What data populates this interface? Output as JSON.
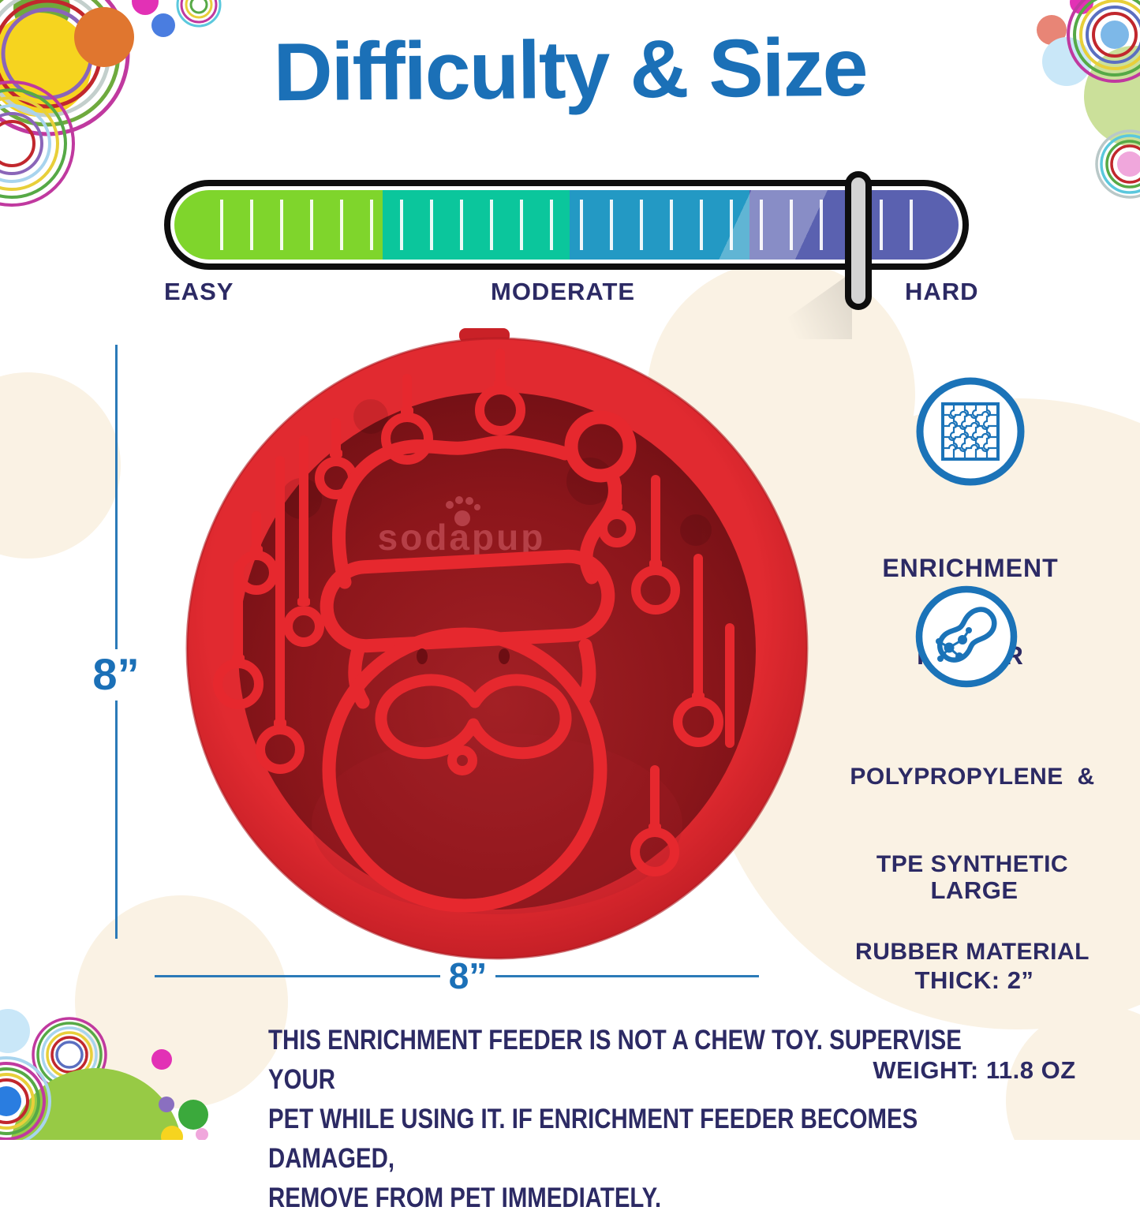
{
  "title": "Difficulty & Size",
  "difficulty_meter": {
    "easy_label": "EASY",
    "moderate_label": "MODERATE",
    "hard_label": "HARD",
    "slider_position_pct": 86.3,
    "segments": [
      {
        "name": "easy-green",
        "color": "#7fd52c",
        "width_pct": 26.6
      },
      {
        "name": "moderate-teal",
        "color": "#0bc69c",
        "width_pct": 23.8
      },
      {
        "name": "moderate-blue",
        "color": "#2399c4",
        "width_pct": 22.9
      },
      {
        "name": "hard-purple",
        "color": "#5a61b0",
        "width_pct": 26.7
      }
    ]
  },
  "feeder": {
    "embossed_logo": "sodapup",
    "height_label": "8”",
    "width_label": "8”"
  },
  "features": [
    {
      "icon": "puzzle-icon",
      "lines": [
        "ENRICHMENT",
        "FEEDER"
      ]
    },
    {
      "icon": "peanut-molecule-icon",
      "lines": [
        "POLYPROPYLENE  &",
        "TPE SYNTHETIC",
        "RUBBER MATERIAL"
      ]
    }
  ],
  "specs": {
    "size": "LARGE",
    "thickness": "THICK: 2”",
    "weight": "WEIGHT: 11.8 OZ"
  },
  "warning_lines": [
    "THIS ENRICHMENT FEEDER IS NOT A CHEW TOY. SUPERVISE YOUR",
    "PET WHILE USING IT. IF ENRICHMENT FEEDER BECOMES DAMAGED,",
    "REMOVE FROM PET IMMEDIATELY."
  ],
  "colors": {
    "title_blue": "#1b70b7",
    "navy_text": "#2c2a64",
    "icon_blue": "#1b73b8",
    "dimension_blue": "#2b7ab8",
    "feeder_red": "#e12a30",
    "feeder_dark_red": "#8c161b",
    "handle_gray": "#d4d4d4",
    "meter_border_black": "#0e0e0e"
  }
}
